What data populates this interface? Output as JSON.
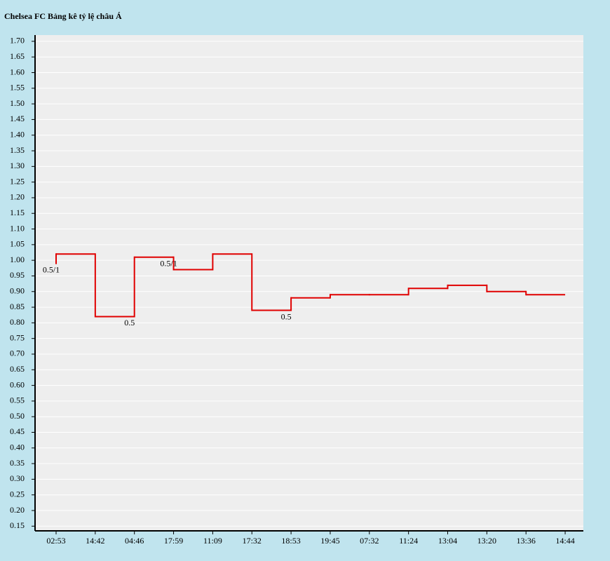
{
  "chart_data": {
    "type": "step",
    "title": "Chelsea FC Bảng kê tỷ lệ châu Á",
    "categories": [
      "02:53",
      "14:42",
      "04:46",
      "17:59",
      "11:09",
      "17:32",
      "18:53",
      "19:45",
      "07:32",
      "11:24",
      "13:04",
      "13:20",
      "13:36",
      "14:44"
    ],
    "series": [
      {
        "color": "#e00000",
        "values": [
          0.99,
          1.02,
          0.82,
          1.01,
          0.97,
          1.02,
          0.84,
          0.88,
          0.89,
          0.89,
          0.91,
          0.92,
          0.9,
          0.89
        ]
      }
    ],
    "annotations": [
      {
        "index": 0,
        "text": "0.5/1"
      },
      {
        "index": 2,
        "text": "0.5"
      },
      {
        "index": 3,
        "text": "0.5/1"
      },
      {
        "index": 6,
        "text": "0.5"
      }
    ],
    "ylim": [
      0.135,
      1.72
    ],
    "yticks": [
      0.15,
      {
        "value": 0.2,
        "label": "0.20"
      },
      0.25,
      {
        "value": 0.3,
        "label": "0.30"
      },
      0.35,
      {
        "value": 0.4,
        "label": "0.40"
      },
      0.45,
      {
        "value": 0.5,
        "label": "0.50"
      },
      0.55,
      {
        "value": 0.6,
        "label": "0.60"
      },
      0.65,
      {
        "value": 0.7,
        "label": "0.70"
      },
      0.75,
      {
        "value": 0.8,
        "label": "0.80"
      },
      0.85,
      {
        "value": 0.9,
        "label": "0.90"
      },
      0.95,
      {
        "value": 1,
        "label": "1.00"
      },
      1.05,
      {
        "value": 1.1,
        "label": "1.10"
      },
      1.15,
      {
        "value": 1.2,
        "label": "1.20"
      },
      1.25,
      {
        "value": 1.3,
        "label": "1.30"
      },
      1.35,
      {
        "value": 1.4,
        "label": "1.40"
      },
      1.45,
      {
        "value": 1.5,
        "label": "1.50"
      },
      1.55,
      {
        "value": 1.6,
        "label": "1.60"
      },
      1.65,
      {
        "value": 1.7,
        "label": "1.70"
      }
    ],
    "grid": true
  }
}
